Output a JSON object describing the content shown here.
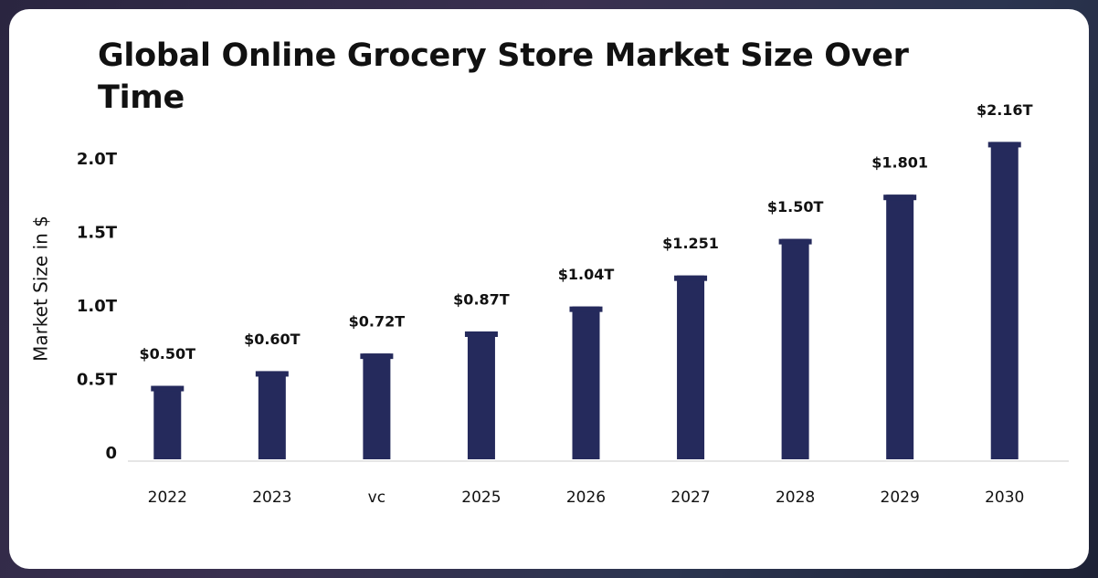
{
  "chart_data": {
    "type": "bar",
    "title": "Global Online Grocery Store Market Size Over Time",
    "ylabel": "Market Size in $",
    "categories": [
      "2022",
      "2023",
      "vc",
      "2025",
      "2026",
      "2027",
      "2028",
      "2029",
      "2030"
    ],
    "values": [
      0.5,
      0.6,
      0.72,
      0.87,
      1.04,
      1.251,
      1.5,
      1.801,
      2.16
    ],
    "value_labels": [
      "$0.50T",
      "$0.60T",
      "$0.72T",
      "$0.87T",
      "$1.04T",
      "$1.251",
      "$1.50T",
      "$1.801",
      "$2.16T"
    ],
    "color": "#252a5c",
    "ylim": [
      0,
      2.2
    ],
    "yticks": [
      0,
      {
        "value": 0.5,
        "label": "0.5T"
      },
      {
        "value": 1.0,
        "label": "1.0T"
      },
      {
        "value": 1.5,
        "label": "1.5T"
      },
      {
        "value": 2.0,
        "label": "2.0T"
      }
    ],
    "grid": false
  }
}
